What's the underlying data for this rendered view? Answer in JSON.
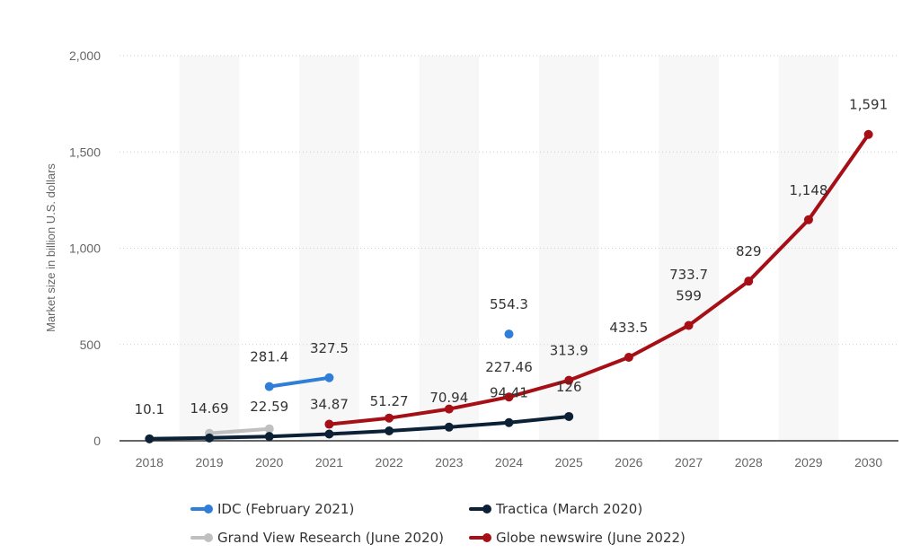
{
  "chart_data": {
    "type": "line",
    "title": "",
    "xlabel": "",
    "ylabel": "Market size in billion U.S. dollars",
    "ylim": [
      0,
      2000
    ],
    "yticks": [
      0,
      500,
      1000,
      1500,
      2000
    ],
    "ytick_labels": [
      "0",
      "500",
      "1,000",
      "1,500",
      "2,000"
    ],
    "categories": [
      "2018",
      "2019",
      "2020",
      "2021",
      "2022",
      "2023",
      "2024",
      "2025",
      "2026",
      "2027",
      "2028",
      "2029",
      "2030"
    ],
    "grid": "horizontal dotted",
    "legend_position": "bottom",
    "series": [
      {
        "name": "IDC (February 2021)",
        "color": "#2f7ed8",
        "points": [
          {
            "x": "2020",
            "y": 281.4,
            "label": "281.4"
          },
          {
            "x": "2021",
            "y": 327.5,
            "label": "327.5"
          },
          {
            "x": "2024",
            "y": 554.3,
            "label": "554.3"
          }
        ]
      },
      {
        "name": "Tractica (March 2020)",
        "color": "#0d2136",
        "points": [
          {
            "x": "2018",
            "y": 10.1,
            "label": "10.1"
          },
          {
            "x": "2019",
            "y": 14.69,
            "label": "14.69"
          },
          {
            "x": "2020",
            "y": 22.59,
            "label": "22.59"
          },
          {
            "x": "2021",
            "y": 34.87,
            "label": "34.87"
          },
          {
            "x": "2022",
            "y": 51.27,
            "label": "51.27"
          },
          {
            "x": "2023",
            "y": 70.94,
            "label": "70.94"
          },
          {
            "x": "2024",
            "y": 94.41,
            "label": "94.41"
          },
          {
            "x": "2025",
            "y": 126,
            "label": "126"
          }
        ]
      },
      {
        "name": "Grand View Research (June 2020)",
        "color": "#c0c0c0",
        "points": [
          {
            "x": "2019",
            "y": 39,
            "label": ""
          },
          {
            "x": "2020",
            "y": 62,
            "label": ""
          }
        ]
      },
      {
        "name": "Globe newswire (June 2022)",
        "color": "#a50f15",
        "points": [
          {
            "x": "2021",
            "y": 86,
            "label": ""
          },
          {
            "x": "2022",
            "y": 118,
            "label": ""
          },
          {
            "x": "2023",
            "y": 165,
            "label": ""
          },
          {
            "x": "2024",
            "y": 227.46,
            "label": "227.46"
          },
          {
            "x": "2025",
            "y": 313.9,
            "label": "313.9"
          },
          {
            "x": "2026",
            "y": 433.5,
            "label": "433.5"
          },
          {
            "x": "2027",
            "y": 599,
            "label": "599"
          },
          {
            "x": "2028",
            "y": 829,
            "label": "829"
          },
          {
            "x": "2029",
            "y": 1148,
            "label": "1,148"
          },
          {
            "x": "2030",
            "y": 1591,
            "label": "1,591"
          }
        ]
      }
    ],
    "annotations": [
      {
        "text": "733.7",
        "near_x": "2027"
      }
    ]
  }
}
